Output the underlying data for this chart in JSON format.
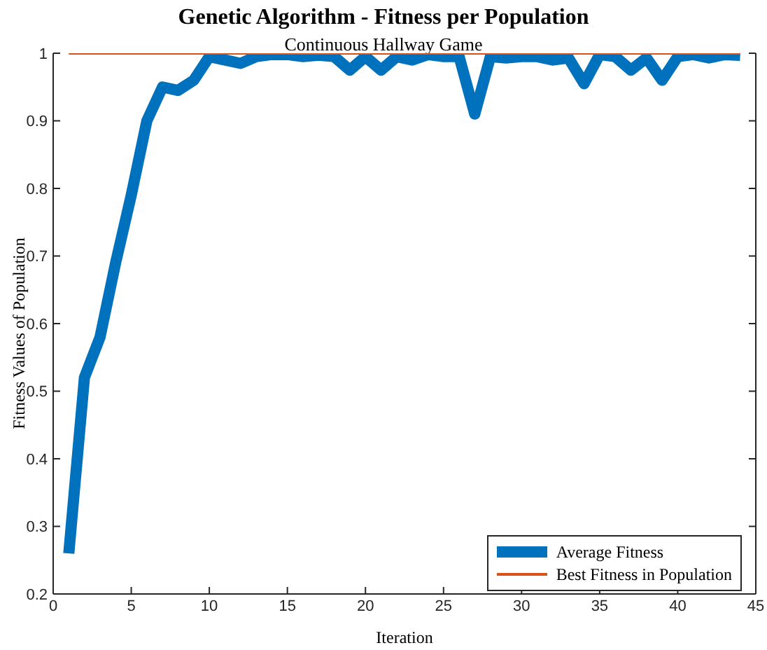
{
  "chart_data": {
    "type": "line",
    "title": "Genetic Algorithm - Fitness per Population",
    "subtitle": "Continuous Hallway Game",
    "xlabel": "Iteration",
    "ylabel": "Fitness Values of Population",
    "x": [
      1,
      2,
      3,
      4,
      5,
      6,
      7,
      8,
      9,
      10,
      11,
      12,
      13,
      14,
      15,
      16,
      17,
      18,
      19,
      20,
      21,
      22,
      23,
      24,
      25,
      26,
      27,
      28,
      29,
      30,
      31,
      32,
      33,
      34,
      35,
      36,
      37,
      38,
      39,
      40,
      41,
      42,
      43,
      44
    ],
    "series": [
      {
        "name": "Average Fitness",
        "color": "#0072bd",
        "values": [
          0.26,
          0.52,
          0.58,
          0.69,
          0.79,
          0.9,
          0.95,
          0.945,
          0.96,
          0.995,
          0.99,
          0.985,
          0.995,
          0.998,
          0.998,
          0.995,
          0.997,
          0.995,
          0.975,
          0.995,
          0.975,
          0.995,
          0.99,
          0.998,
          0.995,
          0.995,
          0.91,
          0.995,
          0.993,
          0.995,
          0.995,
          0.99,
          0.993,
          0.955,
          0.998,
          0.995,
          0.975,
          0.993,
          0.96,
          0.995,
          0.998,
          0.993,
          0.998,
          0.997
        ]
      },
      {
        "name": "Best Fitness in Population",
        "color": "#d95319",
        "values": [
          1,
          1,
          1,
          1,
          1,
          1,
          1,
          1,
          1,
          1,
          1,
          1,
          1,
          1,
          1,
          1,
          1,
          1,
          1,
          1,
          1,
          1,
          1,
          1,
          1,
          1,
          1,
          1,
          1,
          1,
          1,
          1,
          1,
          1,
          1,
          1,
          1,
          1,
          1,
          1,
          1,
          1,
          1,
          1
        ]
      }
    ],
    "xlim": [
      0,
      45
    ],
    "xticks": [
      0,
      5,
      10,
      15,
      20,
      25,
      30,
      35,
      40,
      45
    ],
    "ylim": [
      0.2,
      1
    ],
    "yticks": [
      0.2,
      0.3,
      0.4,
      0.5,
      0.6,
      0.7,
      0.8,
      0.9,
      1
    ],
    "grid": false,
    "legend": "bottom right",
    "marker": "none",
    "line_style": "solid"
  }
}
